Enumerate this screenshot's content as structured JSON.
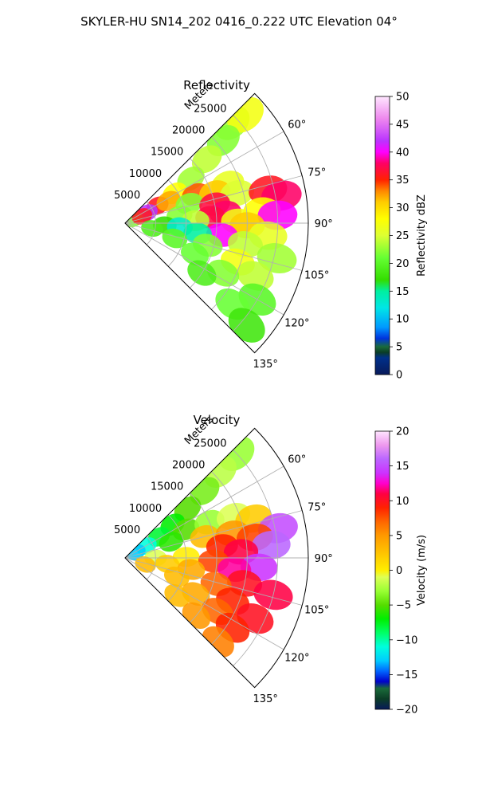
{
  "figure": {
    "suptitle": "SKYLER-HU  SN14_202  0416_0.222 UTC Elevation 04°"
  },
  "chart_data": [
    {
      "type": "heatmap",
      "title": "Reflectivity",
      "projection": "polar sector",
      "theta_labels": [
        "60°",
        "75°",
        "90°",
        "105°",
        "120°",
        "135°"
      ],
      "theta_range_deg": [
        45,
        135
      ],
      "r_label": "Meters",
      "r_ticks": [
        5000,
        10000,
        15000,
        20000,
        25000
      ],
      "r_tick_labels": [
        "5000",
        "10000",
        "15000",
        "20000",
        "25000"
      ],
      "rlim": [
        0,
        30000
      ],
      "grid": true,
      "colorbar": {
        "label": "Reflectivity dBZ",
        "range": [
          0,
          50
        ],
        "ticks": [
          0,
          5,
          10,
          15,
          20,
          25,
          30,
          35,
          40,
          45,
          50
        ],
        "tick_labels": [
          "0",
          "5",
          "10",
          "15",
          "20",
          "25",
          "30",
          "35",
          "40",
          "45",
          "50"
        ],
        "stops": [
          {
            "v": 0,
            "c": "#081a5a"
          },
          {
            "v": 3,
            "c": "#00308a"
          },
          {
            "v": 4,
            "c": "#0b3d26"
          },
          {
            "v": 5,
            "c": "#1a6b3a"
          },
          {
            "v": 6.5,
            "c": "#0033dd"
          },
          {
            "v": 8.5,
            "c": "#0099ff"
          },
          {
            "v": 12,
            "c": "#00e6e6"
          },
          {
            "v": 15,
            "c": "#00f0a0"
          },
          {
            "v": 17,
            "c": "#33dd00"
          },
          {
            "v": 21,
            "c": "#66ff33"
          },
          {
            "v": 25,
            "c": "#ddff33"
          },
          {
            "v": 28,
            "c": "#ffff00"
          },
          {
            "v": 31,
            "c": "#ffcc00"
          },
          {
            "v": 33,
            "c": "#ff8800"
          },
          {
            "v": 35,
            "c": "#ff2200"
          },
          {
            "v": 38,
            "c": "#ff0066"
          },
          {
            "v": 40,
            "c": "#ff00ff"
          },
          {
            "v": 42,
            "c": "#bb33ff"
          },
          {
            "v": 46,
            "c": "#ee88ee"
          },
          {
            "v": 50,
            "c": "#ffe6ff"
          }
        ]
      },
      "cells": [
        {
          "a": 47,
          "r": 24000,
          "v": 23
        },
        {
          "a": 48,
          "r": 26500,
          "v": 27
        },
        {
          "a": 50,
          "r": 21000,
          "v": 22
        },
        {
          "a": 52,
          "r": 17000,
          "v": 24
        },
        {
          "a": 56,
          "r": 13000,
          "v": 23
        },
        {
          "a": 59,
          "r": 9500,
          "v": 28
        },
        {
          "a": 62,
          "r": 6000,
          "v": 36
        },
        {
          "a": 63,
          "r": 8000,
          "v": 32
        },
        {
          "a": 65,
          "r": 4000,
          "v": 42
        },
        {
          "a": 67,
          "r": 1500,
          "v": 22
        },
        {
          "a": 68,
          "r": 12500,
          "v": 34
        },
        {
          "a": 68,
          "r": 3000,
          "v": 36
        },
        {
          "a": 69,
          "r": 18000,
          "v": 26
        },
        {
          "a": 71,
          "r": 15500,
          "v": 31
        },
        {
          "a": 73,
          "r": 11000,
          "v": 22
        },
        {
          "a": 75,
          "r": 19000,
          "v": 25
        },
        {
          "a": 77,
          "r": 24000,
          "v": 36
        },
        {
          "a": 78,
          "r": 15000,
          "v": 37
        },
        {
          "a": 80,
          "r": 26000,
          "v": 38
        },
        {
          "a": 82,
          "r": 9000,
          "v": 22
        },
        {
          "a": 84,
          "r": 16500,
          "v": 38
        },
        {
          "a": 85,
          "r": 22500,
          "v": 28
        },
        {
          "a": 86,
          "r": 14000,
          "v": 37
        },
        {
          "a": 87,
          "r": 25000,
          "v": 40
        },
        {
          "a": 88,
          "r": 11500,
          "v": 24
        },
        {
          "a": 89,
          "r": 18500,
          "v": 27
        },
        {
          "a": 91,
          "r": 20000,
          "v": 31
        },
        {
          "a": 93,
          "r": 6500,
          "v": 17
        },
        {
          "a": 94,
          "r": 9000,
          "v": 13
        },
        {
          "a": 95,
          "r": 23500,
          "v": 26
        },
        {
          "a": 97,
          "r": 16000,
          "v": 40
        },
        {
          "a": 98,
          "r": 12000,
          "v": 15
        },
        {
          "a": 100,
          "r": 20000,
          "v": 24
        },
        {
          "a": 101,
          "r": 4500,
          "v": 19
        },
        {
          "a": 103,
          "r": 25500,
          "v": 23
        },
        {
          "a": 105,
          "r": 14000,
          "v": 22
        },
        {
          "a": 107,
          "r": 8500,
          "v": 20
        },
        {
          "a": 109,
          "r": 19500,
          "v": 27
        },
        {
          "a": 112,
          "r": 23000,
          "v": 24
        },
        {
          "a": 114,
          "r": 12500,
          "v": 21
        },
        {
          "a": 117,
          "r": 18000,
          "v": 22
        },
        {
          "a": 120,
          "r": 25000,
          "v": 20
        },
        {
          "a": 123,
          "r": 15000,
          "v": 19
        },
        {
          "a": 127,
          "r": 22000,
          "v": 21
        },
        {
          "a": 130,
          "r": 26000,
          "v": 18
        }
      ]
    },
    {
      "type": "heatmap",
      "title": "Velocity",
      "projection": "polar sector",
      "theta_labels": [
        "60°",
        "75°",
        "90°",
        "105°",
        "120°",
        "135°"
      ],
      "theta_range_deg": [
        45,
        135
      ],
      "r_label": "Meters",
      "r_ticks": [
        5000,
        10000,
        15000,
        20000,
        25000
      ],
      "r_tick_labels": [
        "5000",
        "10000",
        "15000",
        "20000",
        "25000"
      ],
      "rlim": [
        0,
        30000
      ],
      "grid": true,
      "colorbar": {
        "label": "Velocity (m/s)",
        "range": [
          -20,
          20
        ],
        "ticks": [
          -20,
          -15,
          -10,
          -5,
          0,
          5,
          10,
          15,
          20
        ],
        "tick_labels": [
          "−20",
          "−15",
          "−10",
          "−5",
          "0",
          "5",
          "10",
          "15",
          "20"
        ],
        "stops": [
          {
            "v": -20,
            "c": "#081a5a"
          },
          {
            "v": -18.5,
            "c": "#0b3d26"
          },
          {
            "v": -17,
            "c": "#1a6b3a"
          },
          {
            "v": -16,
            "c": "#0000cc"
          },
          {
            "v": -14.5,
            "c": "#0066ff"
          },
          {
            "v": -13,
            "c": "#00ccff"
          },
          {
            "v": -11,
            "c": "#00ffdd"
          },
          {
            "v": -9,
            "c": "#00ff66"
          },
          {
            "v": -7,
            "c": "#00ee00"
          },
          {
            "v": -5,
            "c": "#55dd00"
          },
          {
            "v": -3,
            "c": "#99ff33"
          },
          {
            "v": -1,
            "c": "#ddff55"
          },
          {
            "v": 0,
            "c": "#ffee00"
          },
          {
            "v": 2,
            "c": "#ffcc00"
          },
          {
            "v": 5,
            "c": "#ff9900"
          },
          {
            "v": 7,
            "c": "#ff6600"
          },
          {
            "v": 9,
            "c": "#ff2200"
          },
          {
            "v": 11,
            "c": "#ff0044"
          },
          {
            "v": 12.5,
            "c": "#ff00cc"
          },
          {
            "v": 14,
            "c": "#cc33ff"
          },
          {
            "v": 16,
            "c": "#bb66ff"
          },
          {
            "v": 18,
            "c": "#ee99ee"
          },
          {
            "v": 20,
            "c": "#ffe6ff"
          }
        ]
      },
      "cells": [
        {
          "a": 47,
          "r": 25000,
          "v": -3
        },
        {
          "a": 48,
          "r": 21000,
          "v": -2
        },
        {
          "a": 50,
          "r": 17000,
          "v": -4
        },
        {
          "a": 52,
          "r": 13000,
          "v": -5
        },
        {
          "a": 55,
          "r": 9500,
          "v": -7
        },
        {
          "a": 58,
          "r": 6500,
          "v": -8
        },
        {
          "a": 61,
          "r": 4000,
          "v": -11
        },
        {
          "a": 63,
          "r": 2000,
          "v": -13
        },
        {
          "a": 65,
          "r": 11000,
          "v": -5
        },
        {
          "a": 67,
          "r": 15000,
          "v": -3
        },
        {
          "a": 69,
          "r": 19000,
          "v": -1
        },
        {
          "a": 71,
          "r": 8000,
          "v": -6
        },
        {
          "a": 73,
          "r": 22000,
          "v": 2
        },
        {
          "a": 75,
          "r": 13500,
          "v": 3
        },
        {
          "a": 77,
          "r": 18000,
          "v": 5
        },
        {
          "a": 79,
          "r": 25500,
          "v": 15
        },
        {
          "a": 81,
          "r": 21500,
          "v": 8
        },
        {
          "a": 83,
          "r": 16000,
          "v": 9
        },
        {
          "a": 85,
          "r": 24000,
          "v": 16
        },
        {
          "a": 87,
          "r": 19000,
          "v": 11
        },
        {
          "a": 89,
          "r": 10000,
          "v": 0
        },
        {
          "a": 90,
          "r": 5000,
          "v": -1
        },
        {
          "a": 92,
          "r": 14500,
          "v": 8
        },
        {
          "a": 94,
          "r": 22000,
          "v": 14
        },
        {
          "a": 96,
          "r": 18000,
          "v": 12
        },
        {
          "a": 98,
          "r": 7000,
          "v": 2
        },
        {
          "a": 100,
          "r": 11000,
          "v": 4
        },
        {
          "a": 102,
          "r": 20000,
          "v": 10
        },
        {
          "a": 104,
          "r": 25000,
          "v": 11
        },
        {
          "a": 106,
          "r": 15500,
          "v": 7
        },
        {
          "a": 108,
          "r": 3500,
          "v": 3
        },
        {
          "a": 110,
          "r": 9000,
          "v": 3
        },
        {
          "a": 112,
          "r": 19000,
          "v": 9
        },
        {
          "a": 115,
          "r": 23500,
          "v": 10
        },
        {
          "a": 117,
          "r": 13000,
          "v": 4
        },
        {
          "a": 120,
          "r": 17500,
          "v": 7
        },
        {
          "a": 123,
          "r": 21000,
          "v": 9
        },
        {
          "a": 126,
          "r": 10500,
          "v": 3
        },
        {
          "a": 129,
          "r": 15000,
          "v": 5
        },
        {
          "a": 132,
          "r": 20500,
          "v": 6
        }
      ]
    }
  ]
}
